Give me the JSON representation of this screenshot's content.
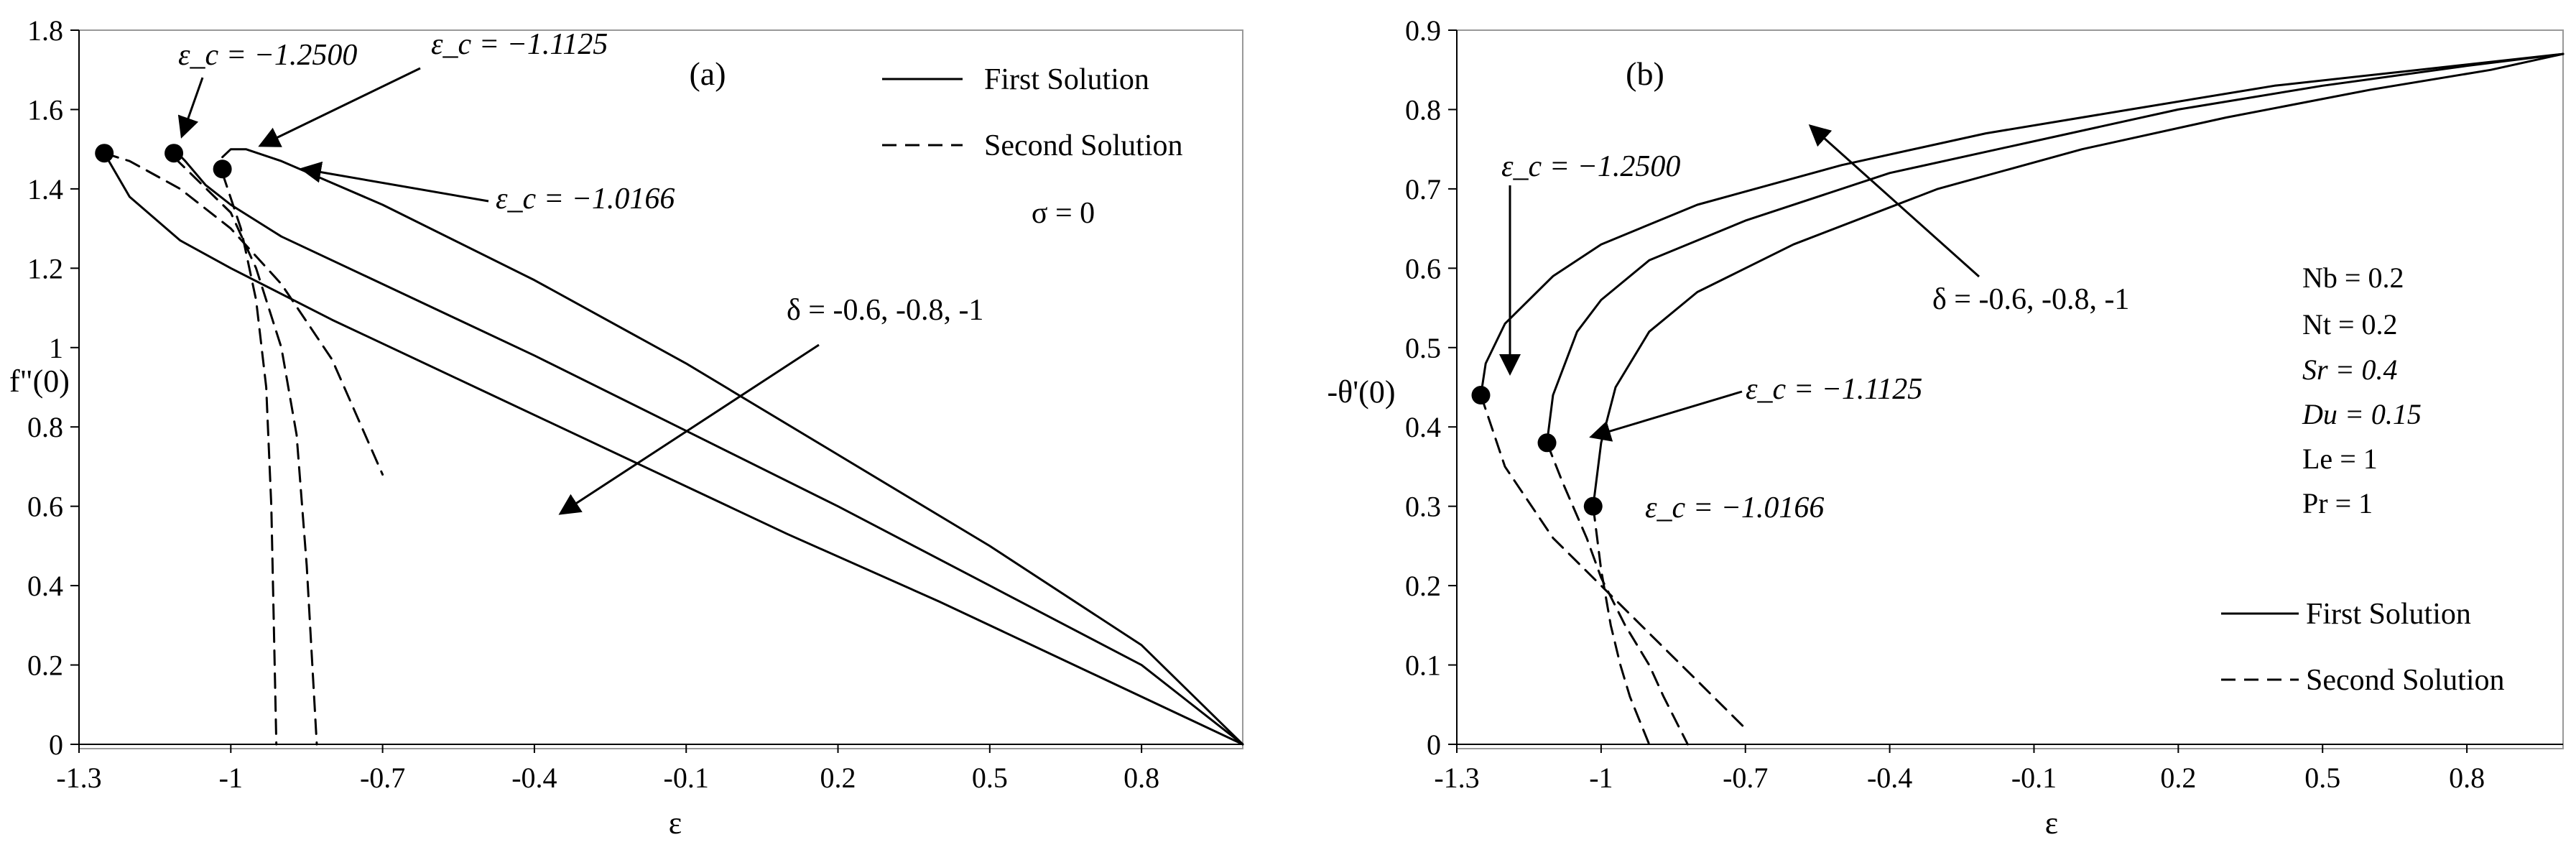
{
  "chart_data": [
    {
      "type": "line",
      "panel_label": "(a)",
      "xlabel": "ε",
      "ylabel": "f\"(0)",
      "xlim": [
        -1.3,
        1.0
      ],
      "ylim": [
        0,
        1.8
      ],
      "x_ticks": [
        -1.3,
        -1,
        -0.7,
        -0.4,
        -0.1,
        0.2,
        0.5,
        0.8
      ],
      "x_tick_labels": [
        "-1.3",
        "-1",
        "-0.7",
        "-0.4",
        "-0.1",
        "0.2",
        "0.5",
        "0.8"
      ],
      "y_ticks": [
        0,
        0.2,
        0.4,
        0.6,
        0.8,
        1,
        1.2,
        1.4,
        1.6,
        1.8
      ],
      "y_tick_labels": [
        "0",
        "0.2",
        "0.4",
        "0.6",
        "0.8",
        "1",
        "1.2",
        "1.4",
        "1.6",
        "1.8"
      ],
      "legend": {
        "first": "First Solution",
        "second": "Second Solution"
      },
      "parameter_label": "σ = 0",
      "delta_label": "δ = -0.6, -0.8, -1",
      "critical_labels": [
        "ε_c = −1.2500",
        "ε_c = −1.1125",
        "ε_c = −1.0166"
      ],
      "series": [
        {
          "name": "First Solution, δ = -1",
          "style": "solid",
          "x": [
            -1.25,
            -1.2,
            -1.1,
            -1.0,
            -0.8,
            -0.5,
            -0.2,
            0.1,
            0.4,
            0.7,
            1.0
          ],
          "y": [
            1.49,
            1.38,
            1.27,
            1.2,
            1.07,
            0.89,
            0.71,
            0.53,
            0.36,
            0.18,
            0.0
          ]
        },
        {
          "name": "First Solution, δ = -0.8",
          "style": "solid",
          "x": [
            -1.1125,
            -1.09,
            -1.05,
            -1.0,
            -0.9,
            -0.7,
            -0.4,
            -0.1,
            0.2,
            0.5,
            0.8,
            1.0
          ],
          "y": [
            1.5,
            1.47,
            1.41,
            1.36,
            1.28,
            1.16,
            0.98,
            0.79,
            0.6,
            0.4,
            0.2,
            0.0
          ]
        },
        {
          "name": "First Solution, δ = -0.6",
          "style": "solid",
          "x": [
            -1.0166,
            -1.0,
            -0.97,
            -0.9,
            -0.7,
            -0.4,
            -0.1,
            0.2,
            0.5,
            0.8,
            1.0
          ],
          "y": [
            1.48,
            1.5,
            1.5,
            1.47,
            1.36,
            1.17,
            0.96,
            0.73,
            0.5,
            0.25,
            0.0
          ]
        },
        {
          "name": "Second Solution, δ = -1",
          "style": "dashed",
          "x": [
            -1.25,
            -1.2,
            -1.1,
            -1.0,
            -0.9,
            -0.8,
            -0.7
          ],
          "y": [
            1.49,
            1.47,
            1.4,
            1.3,
            1.16,
            0.97,
            0.68
          ]
        },
        {
          "name": "Second Solution, δ = -0.8",
          "style": "dashed",
          "x": [
            -1.1125,
            -1.0,
            -0.95,
            -0.9,
            -0.87,
            -0.85,
            -0.83
          ],
          "y": [
            1.48,
            1.34,
            1.2,
            1.0,
            0.78,
            0.45,
            0.0
          ]
        },
        {
          "name": "Second Solution, δ = -0.6",
          "style": "dashed",
          "x": [
            -1.0166,
            -0.98,
            -0.95,
            -0.93,
            -0.92,
            -0.915,
            -0.91
          ],
          "y": [
            1.44,
            1.3,
            1.12,
            0.9,
            0.6,
            0.3,
            0.0
          ]
        }
      ],
      "critical_points": [
        {
          "x": -1.25,
          "y": 1.49
        },
        {
          "x": -1.1125,
          "y": 1.49
        },
        {
          "x": -1.0166,
          "y": 1.45
        }
      ]
    },
    {
      "type": "line",
      "panel_label": "(b)",
      "xlabel": "ε",
      "ylabel": "-θ'(0)",
      "xlim": [
        -1.3,
        1.0
      ],
      "ylim": [
        0,
        0.9
      ],
      "x_ticks": [
        -1.3,
        -1,
        -0.7,
        -0.4,
        -0.1,
        0.2,
        0.5,
        0.8
      ],
      "x_tick_labels": [
        "-1.3",
        "-1",
        "-0.7",
        "-0.4",
        "-0.1",
        "0.2",
        "0.5",
        "0.8"
      ],
      "y_ticks": [
        0,
        0.1,
        0.2,
        0.3,
        0.4,
        0.5,
        0.6,
        0.7,
        0.8,
        0.9
      ],
      "y_tick_labels": [
        "0",
        "0.1",
        "0.2",
        "0.3",
        "0.4",
        "0.5",
        "0.6",
        "0.7",
        "0.8",
        "0.9"
      ],
      "legend": {
        "first": "First Solution",
        "second": "Second Solution"
      },
      "parameters": [
        "Nb = 0.2",
        "Nt  = 0.2",
        "Sr = 0.4",
        "Du = 0.15",
        "Le = 1",
        "Pr = 1"
      ],
      "delta_label": "δ = -0.6, -0.8, -1",
      "critical_labels": [
        "ε_c = −1.2500",
        "ε_c = −1.1125",
        "ε_c = −1.0166"
      ],
      "series": [
        {
          "name": "First Solution, δ = -1",
          "style": "solid",
          "x": [
            -1.25,
            -1.24,
            -1.2,
            -1.1,
            -1.0,
            -0.8,
            -0.5,
            -0.2,
            0.1,
            0.4,
            0.7,
            1.0
          ],
          "y": [
            0.44,
            0.48,
            0.53,
            0.59,
            0.63,
            0.68,
            0.73,
            0.77,
            0.8,
            0.83,
            0.85,
            0.87
          ]
        },
        {
          "name": "First Solution, δ = -0.8",
          "style": "solid",
          "x": [
            -1.1125,
            -1.1,
            -1.05,
            -1.0,
            -0.9,
            -0.7,
            -0.4,
            -0.1,
            0.2,
            0.5,
            0.8,
            1.0
          ],
          "y": [
            0.38,
            0.44,
            0.52,
            0.56,
            0.61,
            0.66,
            0.72,
            0.76,
            0.8,
            0.83,
            0.855,
            0.87
          ]
        },
        {
          "name": "First Solution, δ = -0.6",
          "style": "solid",
          "x": [
            -1.0166,
            -1.0,
            -0.97,
            -0.9,
            -0.8,
            -0.6,
            -0.3,
            0.0,
            0.3,
            0.6,
            0.85,
            1.0
          ],
          "y": [
            0.3,
            0.38,
            0.45,
            0.52,
            0.57,
            0.63,
            0.7,
            0.75,
            0.79,
            0.825,
            0.85,
            0.87
          ]
        },
        {
          "name": "Second Solution, δ = -1",
          "style": "dashed",
          "x": [
            -1.25,
            -1.2,
            -1.1,
            -1.0,
            -0.9,
            -0.8,
            -0.7
          ],
          "y": [
            0.44,
            0.35,
            0.26,
            0.2,
            0.14,
            0.08,
            0.02
          ]
        },
        {
          "name": "Second Solution, δ = -0.8",
          "style": "dashed",
          "x": [
            -1.1125,
            -1.08,
            -1.03,
            -1.0,
            -0.95,
            -0.9,
            -0.87,
            -0.82
          ],
          "y": [
            0.38,
            0.33,
            0.26,
            0.21,
            0.15,
            0.1,
            0.06,
            0.0
          ]
        },
        {
          "name": "Second Solution, δ = -0.6",
          "style": "dashed",
          "x": [
            -1.0166,
            -1.0,
            -0.98,
            -0.96,
            -0.94,
            -0.92,
            -0.9
          ],
          "y": [
            0.3,
            0.22,
            0.15,
            0.1,
            0.06,
            0.03,
            0.0
          ]
        }
      ],
      "critical_points": [
        {
          "x": -1.25,
          "y": 0.44
        },
        {
          "x": -1.1125,
          "y": 0.38
        },
        {
          "x": -1.0166,
          "y": 0.3
        }
      ]
    }
  ]
}
